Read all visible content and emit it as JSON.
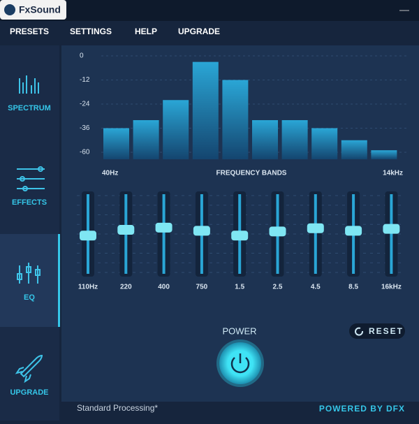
{
  "app": {
    "name": "FxSound",
    "close": "—",
    "menu": [
      "PRESETS",
      "SETTINGS",
      "HELP",
      "UPGRADE"
    ],
    "sidebar": [
      "SPECTRUM",
      "EFFECTS",
      "EQ",
      "UPGRADE"
    ],
    "spectrum": {
      "yticks": [
        0,
        -12,
        -24,
        -36,
        -60
      ],
      "ylim": [
        -67,
        0
      ],
      "values": [
        -36,
        -32,
        -22,
        -3,
        -12,
        -32,
        -32,
        -36,
        -48,
        -58
      ],
      "x_left": "40Hz",
      "x_title": "FREQUENCY BANDS",
      "x_right": "14kHz"
    },
    "eq": {
      "bands": [
        "110Hz",
        "220",
        "400",
        "750",
        "1.5",
        "2.5",
        "4.5",
        "8.5",
        "16kHz"
      ],
      "ylim": [
        -12,
        12
      ],
      "levels": [
        -0.5,
        1.3,
        2,
        1,
        -0.5,
        0.8,
        1.8,
        1,
        1.6
      ]
    },
    "power": "POWER",
    "reset": "RESET",
    "footer": {
      "status": "Standard Processing*",
      "brand": "POWERED BY DFX"
    }
  }
}
